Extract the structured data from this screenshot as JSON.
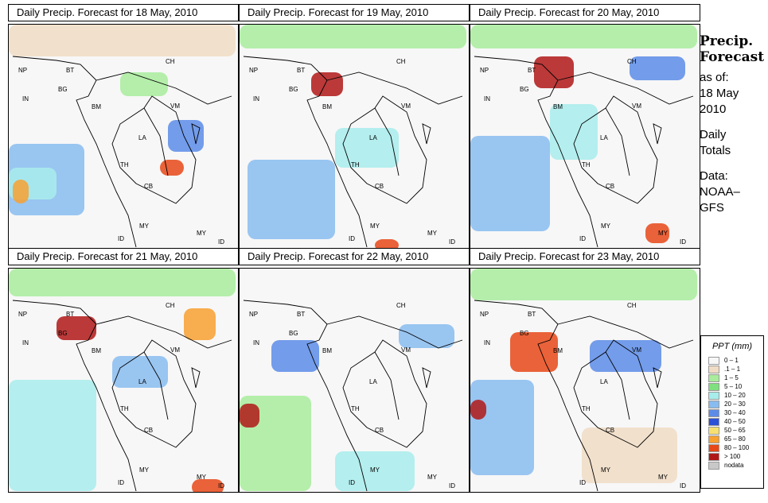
{
  "panels": [
    {
      "title": "Daily Precip. Forecast for  18 May, 2010"
    },
    {
      "title": "Daily Precip. Forecast for  19 May, 2010"
    },
    {
      "title": "Daily Precip. Forecast for  20 May, 2010"
    },
    {
      "title": "Daily Precip. Forecast for  21 May, 2010"
    },
    {
      "title": "Daily Precip. Forecast for  22 May, 2010"
    },
    {
      "title": "Daily Precip. Forecast for  23 May, 2010"
    }
  ],
  "map_labels": [
    "NP",
    "BT",
    "BG",
    "IN",
    "BM",
    "CH",
    "VM",
    "LA",
    "TH",
    "CB",
    "MY",
    "ID",
    "MY",
    "ID"
  ],
  "sidebar": {
    "title_line1": "Precip.",
    "title_line2": "Forecast",
    "asof": "as of:",
    "date_line1": "18 May",
    "date_line2": "2010",
    "daily_line1": "Daily",
    "daily_line2": "Totals",
    "data_line1": "Data:",
    "data_line2": "NOAA–",
    "data_line3": "GFS"
  },
  "legend": {
    "title": "PPT (mm)",
    "items": [
      {
        "label": "0 – 1",
        "color": "#f7f7f7"
      },
      {
        "label": ".1 – 1",
        "color": "#f0dcc4"
      },
      {
        "label": "1 – 5",
        "color": "#a8ec9c"
      },
      {
        "label": "5 – 10",
        "color": "#7ee07e"
      },
      {
        "label": "10 – 20",
        "color": "#a8ecec"
      },
      {
        "label": "20 – 30",
        "color": "#88bcf0"
      },
      {
        "label": "30 – 40",
        "color": "#5c8ce8"
      },
      {
        "label": "40 – 50",
        "color": "#2c50d8"
      },
      {
        "label": "50 – 65",
        "color": "#f8e070"
      },
      {
        "label": "65 – 80",
        "color": "#f8a030"
      },
      {
        "label": "80 – 100",
        "color": "#e84818"
      },
      {
        "label": "> 100",
        "color": "#b01818"
      },
      {
        "label": "nodata",
        "color": "#c8c8c8"
      }
    ]
  }
}
